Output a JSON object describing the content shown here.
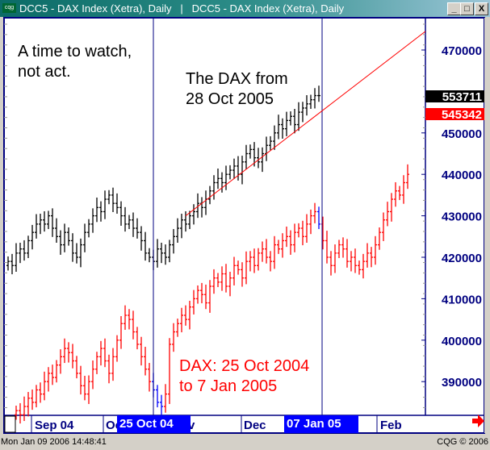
{
  "window": {
    "title": "DCC5 - DAX Index (Xetra), Daily   |   DCC5 - DAX Index (Xetra), Daily",
    "logo": "cqg",
    "buttons": {
      "minimize": "_",
      "maximize": "□",
      "close": "X"
    }
  },
  "status": {
    "left": "Mon Jan 09 2006 14:48:41",
    "right": "CQG © 2006"
  },
  "colors": {
    "series_2005": "#000000",
    "series_2004": "#ff0000",
    "highlight": "#0000ff",
    "trendline": "#ff0000",
    "axis": "#000080"
  },
  "chart_data": {
    "type": "ohlc-bar",
    "annotations": {
      "note": [
        "A time to watch,",
        "not act."
      ],
      "series_2005": [
        "The DAX from",
        "28 Oct 2005"
      ],
      "series_2004": [
        "DAX: 25 Oct 2004",
        "to 7 Jan 2005"
      ]
    },
    "y_ticks": [
      "470000",
      "450000",
      "440000",
      "430000",
      "420000",
      "410000",
      "400000",
      "390000"
    ],
    "y_tick_values": [
      470000,
      450000,
      440000,
      430000,
      420000,
      410000,
      400000,
      390000
    ],
    "price_labels": [
      {
        "text": "553711",
        "background": "#000000"
      },
      {
        "text": "545342",
        "background": "#ff0000"
      }
    ],
    "x_labels": [
      "Sep 04",
      "Oc",
      "v",
      "Dec",
      "Feb"
    ],
    "x_highlight_labels": [
      "25 Oct 04",
      "07 Jan 05"
    ],
    "series": [
      {
        "closes": [
          419000,
          418000,
          421000,
          422000,
          421000,
          424000,
          426000,
          428000,
          429000,
          428000,
          430000,
          427000,
          425000,
          423000,
          426000,
          424000,
          421000,
          420000,
          423000,
          426000,
          428000,
          430000,
          432000,
          431000,
          434000,
          435000,
          433000,
          432000,
          430000,
          428000,
          429000,
          427000,
          426000,
          424000,
          421000,
          420000,
          419000,
          422000,
          421000,
          420000,
          423000,
          425000,
          427000,
          429000,
          428000,
          430000,
          431000,
          433000,
          432000,
          434000,
          436000,
          438000,
          439000,
          438000,
          440000,
          441000,
          442000,
          440000,
          443000,
          445000,
          446000,
          444000,
          443000,
          445000,
          447000,
          448000,
          450000,
          452000,
          451000,
          453000,
          454000,
          452000,
          455000,
          456000,
          457000,
          458000,
          459000,
          459000
        ]
      },
      {
        "closes": [
          383000,
          382000,
          384000,
          386000,
          385000,
          388000,
          387000,
          390000,
          392000,
          391000,
          394000,
          396000,
          398000,
          397000,
          395000,
          392000,
          389000,
          387000,
          390000,
          393000,
          396000,
          398000,
          395000,
          392000,
          396000,
          400000,
          404000,
          406000,
          405000,
          402000,
          399000,
          396000,
          393000,
          390000,
          388000,
          385000,
          384000,
          387000,
          399000,
          402000,
          404000,
          406000,
          405000,
          408000,
          410000,
          412000,
          411000,
          409000,
          413000,
          415000,
          414000,
          416000,
          413000,
          415000,
          418000,
          417000,
          415000,
          419000,
          420000,
          418000,
          421000,
          422000,
          420000,
          419000,
          423000,
          422000,
          424000,
          425000,
          423000,
          426000,
          427000,
          425000,
          428000,
          430000,
          431000,
          428000,
          424000,
          420000,
          418000,
          421000,
          423000,
          422000,
          419000,
          420000,
          418000,
          417000,
          419000,
          421000,
          420000,
          423000,
          426000,
          429000,
          431000,
          434000,
          436000,
          435000,
          438000,
          440000
        ]
      }
    ],
    "trendline": {
      "from": 430000,
      "to": 474500
    }
  }
}
